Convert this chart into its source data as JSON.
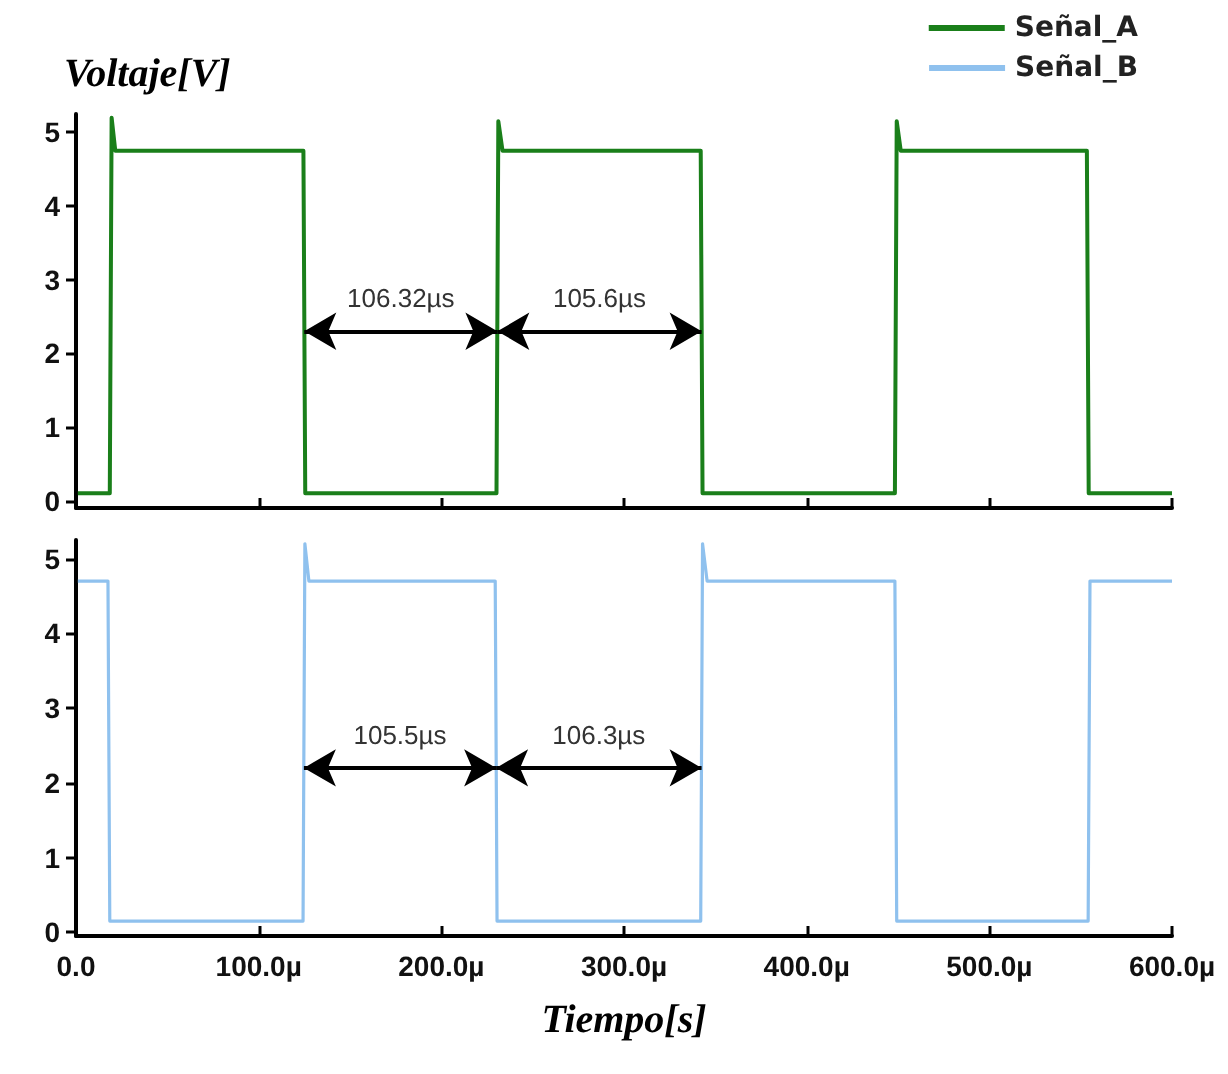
{
  "chart_data": [
    {
      "type": "line",
      "ylabel": "Voltaje[V]",
      "xlim": [
        0,
        600
      ],
      "xticks": [
        {
          "value": 0,
          "label": null
        },
        {
          "value": 100,
          "label": null
        },
        {
          "value": 200,
          "label": null
        },
        {
          "value": 300,
          "label": null
        },
        {
          "value": 400,
          "label": null
        },
        {
          "value": 500,
          "label": null
        },
        {
          "value": 600,
          "label": null
        }
      ],
      "ylim": [
        -0.1,
        5.25
      ],
      "yticks": [
        0,
        1,
        2,
        3,
        4,
        5
      ],
      "tick_labels": "y",
      "grid": false,
      "legend": "top right",
      "marker": "none",
      "line_style": "solid",
      "series": [
        {
          "name": "Señal_A",
          "color": "#1a7f1a",
          "x": [
            1,
            18.5,
            19.5,
            21.5,
            124.5,
            125.5,
            230.2,
            231.2,
            233.5,
            342,
            343,
            448.3,
            449.3,
            451.5,
            553.4,
            554.4,
            600
          ],
          "values": [
            0.1,
            0.1,
            5.2,
            4.75,
            4.75,
            0.1,
            0.1,
            5.15,
            4.75,
            4.75,
            0.1,
            0.1,
            5.15,
            4.75,
            4.75,
            0.1,
            0.1
          ]
        }
      ],
      "annotations": [
        "106.32µs",
        "105.6µs"
      ]
    },
    {
      "type": "line",
      "xlabel": "Tiempo[s]",
      "xlim": [
        0,
        600
      ],
      "xticks": [
        {
          "value": 0,
          "label": "0.0"
        },
        {
          "value": 100,
          "label": "100.0µ"
        },
        {
          "value": 200,
          "label": "200.0µ"
        },
        {
          "value": 300,
          "label": "300.0µ"
        },
        {
          "value": 400,
          "label": "400.0µ"
        },
        {
          "value": 500,
          "label": "500.0µ"
        },
        {
          "value": 600,
          "label": "600.0µ"
        }
      ],
      "ylim": [
        -0.05,
        5.25
      ],
      "yticks": [
        0,
        1,
        2,
        3,
        4,
        5
      ],
      "grid": false,
      "legend": "top right",
      "marker": "none",
      "line_style": "solid",
      "series": [
        {
          "name": "Señal_B",
          "color": "#8fc1ee",
          "x": [
            1,
            17.5,
            18.5,
            124.3,
            125.3,
            127.5,
            229.5,
            230.5,
            342,
            343,
            345.5,
            448.3,
            449.3,
            554.1,
            555.1,
            600
          ],
          "values": [
            4.7,
            4.7,
            0.15,
            0.15,
            5.2,
            4.7,
            4.7,
            0.15,
            0.15,
            5.2,
            4.7,
            4.7,
            0.15,
            0.15,
            4.7,
            4.7
          ]
        }
      ],
      "annotations": [
        "105.5µs",
        "106.3µs"
      ]
    }
  ]
}
